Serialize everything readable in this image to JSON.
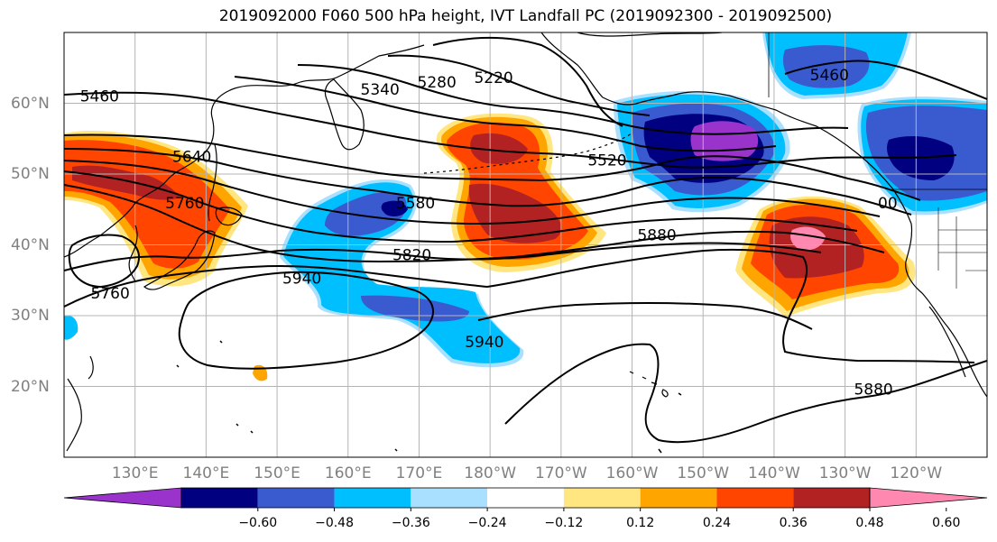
{
  "title": "2019092000 F060 500 hPa height, IVT Landfall PC (2019092300 - 2019092500)",
  "map": {
    "lon_range": [
      120,
      250
    ],
    "lat_range": [
      10,
      70
    ],
    "lon_ticks": [
      "130°E",
      "140°E",
      "150°E",
      "160°E",
      "170°E",
      "180°W",
      "170°W",
      "160°W",
      "150°W",
      "140°W",
      "130°W",
      "120°W"
    ],
    "lat_ticks": [
      "20°N",
      "30°N",
      "40°N",
      "50°N",
      "60°N"
    ],
    "grid": true,
    "contour_color": "#000000",
    "coastline_color": "#000000"
  },
  "contour_labels": [
    {
      "text": "5460",
      "lon": 125.0,
      "lat": 61.0
    },
    {
      "text": "5340",
      "lon": 164.5,
      "lat": 62.0
    },
    {
      "text": "5280",
      "lon": 172.5,
      "lat": 63.0
    },
    {
      "text": "5220",
      "lon": 180.5,
      "lat": 63.6
    },
    {
      "text": "5460",
      "lon": 227.8,
      "lat": 64.0
    },
    {
      "text": "5640",
      "lon": 138.0,
      "lat": 52.5
    },
    {
      "text": "5760",
      "lon": 137.0,
      "lat": 45.9
    },
    {
      "text": "5580",
      "lon": 169.5,
      "lat": 45.9
    },
    {
      "text": "5520",
      "lon": 196.5,
      "lat": 52.0
    },
    {
      "text": "5820",
      "lon": 169.0,
      "lat": 38.6
    },
    {
      "text": "5880",
      "lon": 203.5,
      "lat": 41.4
    },
    {
      "text": "5940",
      "lon": 153.5,
      "lat": 35.3
    },
    {
      "text": "5760",
      "lon": 126.5,
      "lat": 33.2
    },
    {
      "text": "5940",
      "lon": 179.2,
      "lat": 26.3
    },
    {
      "text": "5880",
      "lon": 234.0,
      "lat": 19.6
    },
    {
      "text": "00",
      "lon": 236.0,
      "lat": 45.9
    }
  ],
  "ivt_colorbar": {
    "ticks": [
      "−0.60",
      "−0.48",
      "−0.36",
      "−0.24",
      "−0.12",
      "0.12",
      "0.24",
      "0.36",
      "0.48",
      "0.60"
    ],
    "colors": [
      "#9933cc",
      "#000080",
      "#3a5bd0",
      "#00bfff",
      "#aae0ff",
      "#ffffff",
      "#ffe680",
      "#ffa500",
      "#ff4500",
      "#b22222",
      "#ff88b0"
    ]
  },
  "ivt_pc_regions": [
    {
      "name": "west-pacific-japan",
      "sign": "positive",
      "center": [
        137,
        47
      ],
      "peak": 0.55
    },
    {
      "name": "northwest-pacific",
      "sign": "positive",
      "center": [
        181,
        47
      ],
      "peak": 0.5
    },
    {
      "name": "northeast-pacific",
      "sign": "positive",
      "center": [
        225,
        40
      ],
      "peak": 0.62
    },
    {
      "name": "central-pacific",
      "sign": "negative",
      "center": [
        168,
        37
      ],
      "peak": -0.45
    },
    {
      "name": "bering-alaska",
      "sign": "negative",
      "center": [
        206,
        54
      ],
      "peak": -0.7
    },
    {
      "name": "gulf-of-alaska",
      "sign": "negative",
      "center": [
        236,
        52
      ],
      "peak": -0.55
    },
    {
      "name": "alaska-north",
      "sign": "negative",
      "center": [
        229,
        64
      ],
      "peak": -0.4
    }
  ]
}
